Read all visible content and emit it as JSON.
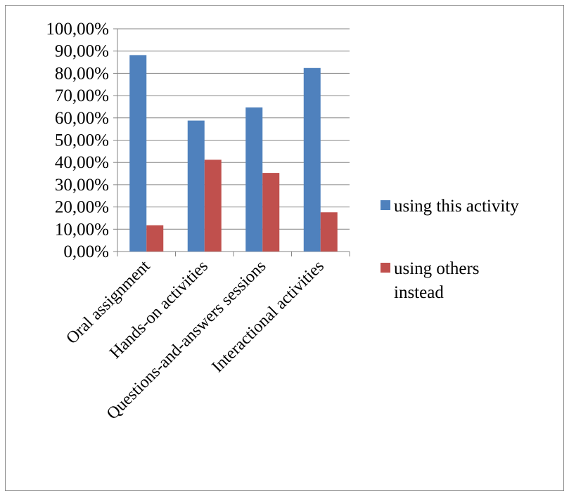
{
  "chart_data": {
    "type": "bar",
    "categories": [
      "Oral assignment",
      "Hands-on activities",
      "Questions-and-answers sessions",
      "Interactional activities"
    ],
    "series": [
      {
        "name": "using this activity",
        "values": [
          88.2,
          58.8,
          64.7,
          82.4
        ],
        "color": "#4f81bd"
      },
      {
        "name": "using others instead",
        "values": [
          11.8,
          41.2,
          35.3,
          17.6
        ],
        "color": "#c0504d"
      }
    ],
    "ylim": [
      0,
      100
    ],
    "y_ticks": [
      0,
      10,
      20,
      30,
      40,
      50,
      60,
      70,
      80,
      90,
      100
    ],
    "y_tick_labels": [
      "0,00%",
      "10,00%",
      "20,00%",
      "30,00%",
      "40,00%",
      "50,00%",
      "60,00%",
      "70,00%",
      "80,00%",
      "90,00%",
      "100,00%"
    ],
    "grid": true,
    "legend": {
      "position": "right",
      "entries": [
        {
          "lines": [
            "using this activity"
          ]
        },
        {
          "lines": [
            "using others",
            "instead"
          ]
        }
      ]
    },
    "title": "",
    "xlabel": "",
    "ylabel": ""
  }
}
